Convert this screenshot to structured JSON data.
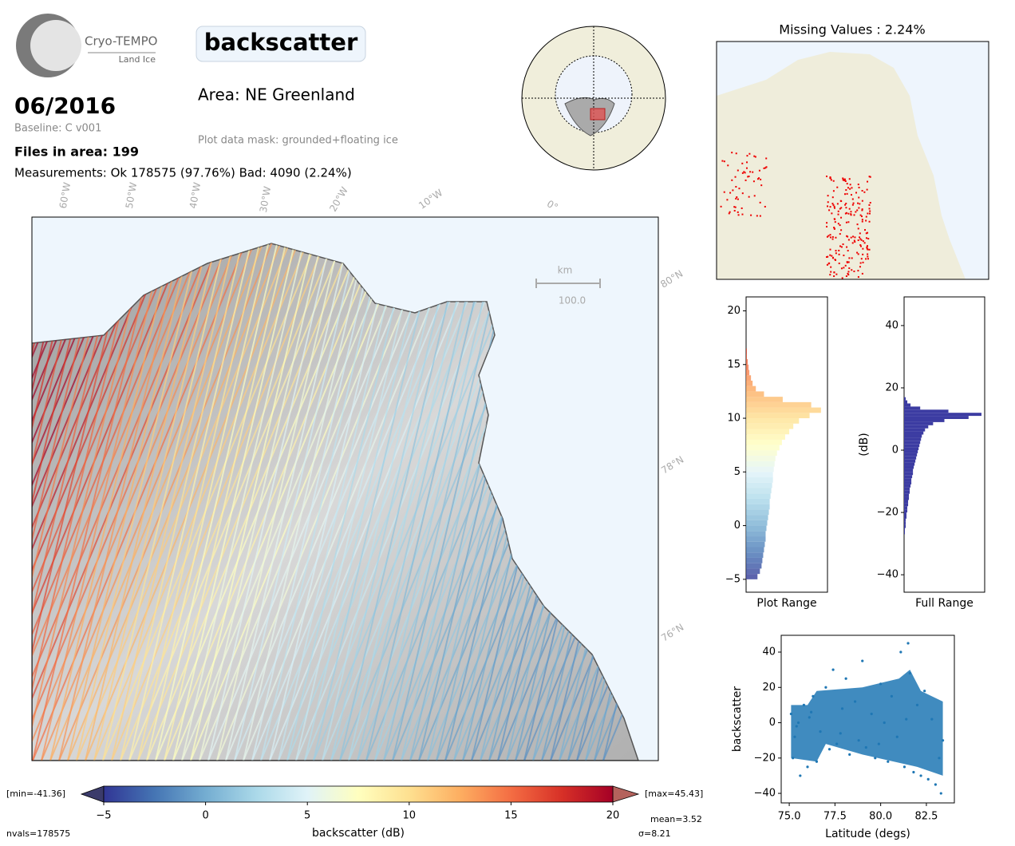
{
  "header": {
    "logo_title": "Cryo-TEMPO",
    "logo_subtitle": "Land Ice",
    "title": "backscatter",
    "date": "06/2016",
    "baseline": "Baseline: C v001",
    "files": "Files in area: 199",
    "measurements": "Measurements: Ok 178575 (97.76%) Bad: 4090 (2.24%)",
    "area": "Area: NE Greenland",
    "mask": "Plot data mask: grounded+floating ice"
  },
  "map": {
    "lon_labels": [
      "60°W",
      "50°W",
      "40°W",
      "30°W",
      "20°W",
      "10°W",
      "0°"
    ],
    "lat_labels": [
      "80°N",
      "78°N",
      "76°N"
    ],
    "scale_unit": "km",
    "scale_value": "100.0",
    "missing_title": "Missing Values : 2.24%"
  },
  "stats": {
    "min": "[min=-41.36]",
    "max": "[max=45.43]",
    "nvals": "nvals=178575",
    "mean": "mean=3.52",
    "sigma": "σ=8.21"
  },
  "chart_data": [
    {
      "type": "colorbar",
      "xlabel": "backscatter (dB)",
      "xlim": [
        -5,
        20
      ],
      "xticks": [
        {
          "value": -5,
          "label": "−5"
        },
        0,
        5,
        10,
        15,
        20
      ],
      "colors": [
        "#313695",
        "#4575b4",
        "#74add1",
        "#abd9e9",
        "#e0f3f8",
        "#ffffbf",
        "#fee090",
        "#fdae61",
        "#f46d43",
        "#d73027",
        "#a50026"
      ],
      "under_color": "#3b3b6b",
      "over_color": "#b4625c"
    },
    {
      "type": "histogram",
      "orientation": "horizontal",
      "xlabel": "Plot Range",
      "cmap": true,
      "bins": [
        -5,
        -4.5,
        -4,
        -3.5,
        -3,
        -2.5,
        -2,
        -1.5,
        -1,
        -0.5,
        0,
        0.5,
        1,
        1.5,
        2,
        2.5,
        3,
        3.5,
        4,
        4.5,
        5,
        5.5,
        6,
        6.5,
        7,
        7.5,
        8,
        8.5,
        9,
        9.5,
        10,
        10.5,
        11,
        11.5,
        12,
        12.5,
        13,
        13.5,
        14,
        14.5,
        15,
        15.5,
        16,
        16.5
      ],
      "values": [
        14,
        17,
        19,
        20,
        21,
        22,
        23,
        24,
        24,
        25,
        26,
        27,
        28,
        29,
        29,
        30,
        31,
        32,
        33,
        33,
        34,
        35,
        36,
        38,
        41,
        44,
        48,
        53,
        58,
        65,
        78,
        92,
        80,
        45,
        22,
        12,
        8,
        6,
        4,
        3,
        2,
        1,
        1
      ],
      "xlim": [
        0,
        100
      ],
      "ylim": [
        -6.2,
        21.3
      ],
      "yticks": [
        {
          "value": -5,
          "label": "−5"
        },
        0,
        5,
        10,
        15,
        20
      ]
    },
    {
      "type": "histogram",
      "orientation": "horizontal",
      "xlabel": "Full Range",
      "ylabel": "(dB)",
      "color": "#3c3ca2",
      "bins": [
        -27,
        -26,
        -25,
        -24,
        -23,
        -22,
        -21,
        -20,
        -19,
        -18,
        -17,
        -16,
        -15,
        -14,
        -13,
        -12,
        -11,
        -10,
        -9,
        -8,
        -7,
        -6,
        -5,
        -4,
        -3,
        -2,
        -1,
        0,
        1,
        2,
        3,
        4,
        5,
        6,
        7,
        8,
        9,
        10,
        11,
        12,
        13,
        14,
        15,
        16,
        17
      ],
      "values": [
        1,
        1,
        2,
        2,
        2,
        3,
        3,
        4,
        4,
        5,
        5,
        6,
        6,
        7,
        7,
        8,
        9,
        9,
        10,
        11,
        11,
        12,
        13,
        14,
        15,
        16,
        17,
        18,
        19,
        20,
        21,
        22,
        24,
        26,
        30,
        36,
        50,
        80,
        96,
        55,
        20,
        8,
        4,
        2
      ],
      "xlim": [
        0,
        100
      ],
      "ylim": [
        -45.6,
        49.2
      ],
      "yticks": [
        {
          "value": -40,
          "label": "−40"
        },
        {
          "value": -20,
          "label": "−20"
        },
        0,
        20,
        40
      ]
    },
    {
      "type": "scatter",
      "xlabel": "Latitude (degs)",
      "ylabel": "backscatter",
      "color": "#1f77b4",
      "x": [
        75.1,
        75.2,
        75.3,
        75.5,
        75.6,
        75.8,
        76.0,
        76.1,
        76.3,
        76.5,
        76.7,
        77.0,
        77.2,
        77.4,
        77.6,
        77.9,
        78.1,
        78.3,
        78.6,
        78.8,
        79.0,
        79.2,
        79.5,
        79.7,
        80.0,
        80.2,
        80.4,
        80.6,
        80.9,
        81.1,
        81.3,
        81.5,
        81.6,
        81.8,
        82.0,
        82.2,
        82.4,
        82.6,
        82.8,
        83.0,
        83.2,
        83.4,
        75.4,
        76.2,
        77.8,
        79.9,
        81.4,
        83.3
      ],
      "y": [
        5,
        -20,
        -8,
        0,
        -30,
        10,
        -25,
        3,
        15,
        -22,
        -5,
        20,
        -15,
        30,
        -12,
        8,
        25,
        -18,
        12,
        -10,
        35,
        -14,
        5,
        -20,
        22,
        0,
        -22,
        15,
        -8,
        40,
        -25,
        45,
        28,
        -28,
        10,
        -30,
        18,
        -32,
        2,
        -35,
        -20,
        -10,
        -2,
        6,
        -6,
        -12,
        2,
        -40
      ],
      "xlim": [
        74.56,
        84.03
      ],
      "ylim": [
        -45.4,
        49.5
      ],
      "xticks": [
        {
          "value": 75,
          "label": "75.0"
        },
        {
          "value": 77.5,
          "label": "77.5"
        },
        {
          "value": 80,
          "label": "80.0"
        },
        {
          "value": 82.5,
          "label": "82.5"
        }
      ],
      "yticks": [
        {
          "value": -40,
          "label": "−40"
        },
        {
          "value": -20,
          "label": "−20"
        },
        0,
        20,
        40
      ]
    }
  ]
}
